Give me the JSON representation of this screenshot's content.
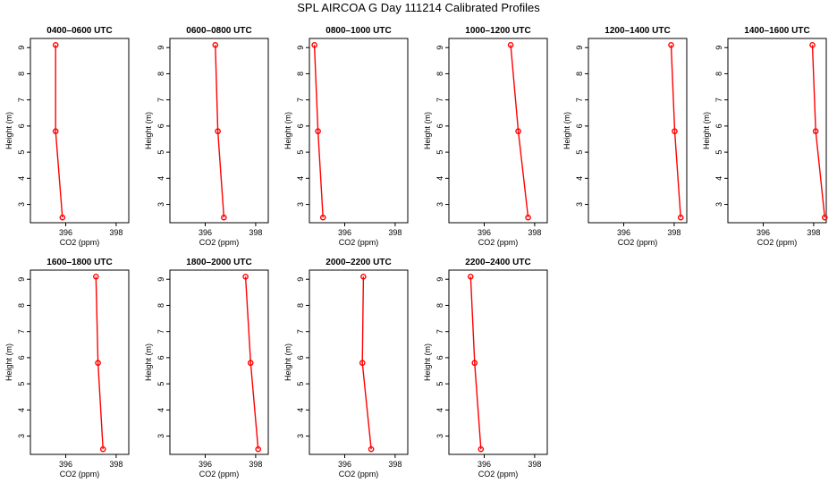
{
  "page": {
    "title": "SPL AIRCOA G  Day 111214  Calibrated Profiles"
  },
  "colors": {
    "profile_line": "#ff0000",
    "frame": "#000000"
  },
  "chart_data": [
    {
      "type": "line",
      "title": "0400–0600 UTC",
      "xlabel": "CO2 (ppm)",
      "ylabel": "Height (m)",
      "x_ticks": [
        "396",
        "398"
      ],
      "y_ticks": [
        "3",
        "4",
        "5",
        "6",
        "7",
        "8",
        "9"
      ],
      "xlim": [
        394.6,
        398.5
      ],
      "ylim": [
        2.3,
        9.35
      ],
      "series": [
        {
          "x": [
            395.6,
            395.6,
            395.87
          ],
          "y": [
            9.1,
            5.8,
            2.5
          ]
        }
      ]
    },
    {
      "type": "line",
      "title": "0600–0800 UTC",
      "xlabel": "CO2 (ppm)",
      "ylabel": "Height (m)",
      "x_ticks": [
        "396",
        "398"
      ],
      "y_ticks": [
        "3",
        "4",
        "5",
        "6",
        "7",
        "8",
        "9"
      ],
      "xlim": [
        394.6,
        398.5
      ],
      "ylim": [
        2.3,
        9.35
      ],
      "series": [
        {
          "x": [
            396.4,
            396.5,
            396.74
          ],
          "y": [
            9.1,
            5.8,
            2.5
          ]
        }
      ]
    },
    {
      "type": "line",
      "title": "0800–1000 UTC",
      "xlabel": "CO2 (ppm)",
      "ylabel": "Height (m)",
      "x_ticks": [
        "396",
        "398"
      ],
      "y_ticks": [
        "3",
        "4",
        "5",
        "6",
        "7",
        "8",
        "9"
      ],
      "xlim": [
        394.6,
        398.5
      ],
      "ylim": [
        2.3,
        9.35
      ],
      "series": [
        {
          "x": [
            394.8,
            394.94,
            395.14
          ],
          "y": [
            9.1,
            5.8,
            2.5
          ]
        }
      ]
    },
    {
      "type": "line",
      "title": "1000–1200 UTC",
      "xlabel": "CO2 (ppm)",
      "ylabel": "Height (m)",
      "x_ticks": [
        "396",
        "398"
      ],
      "y_ticks": [
        "3",
        "4",
        "5",
        "6",
        "7",
        "8",
        "9"
      ],
      "xlim": [
        394.6,
        398.5
      ],
      "ylim": [
        2.3,
        9.35
      ],
      "series": [
        {
          "x": [
            397.05,
            397.35,
            397.74
          ],
          "y": [
            9.1,
            5.8,
            2.5
          ]
        }
      ]
    },
    {
      "type": "line",
      "title": "1200–1400 UTC",
      "xlabel": "CO2 (ppm)",
      "ylabel": "Height (m)",
      "x_ticks": [
        "396",
        "398"
      ],
      "y_ticks": [
        "3",
        "4",
        "5",
        "6",
        "7",
        "8",
        "9"
      ],
      "xlim": [
        394.6,
        398.5
      ],
      "ylim": [
        2.3,
        9.35
      ],
      "series": [
        {
          "x": [
            397.88,
            398.02,
            398.26
          ],
          "y": [
            9.1,
            5.8,
            2.5
          ]
        }
      ]
    },
    {
      "type": "line",
      "title": "1400–1600 UTC",
      "xlabel": "CO2 (ppm)",
      "ylabel": "Height (m)",
      "x_ticks": [
        "396",
        "398"
      ],
      "y_ticks": [
        "3",
        "4",
        "5",
        "6",
        "7",
        "8",
        "9"
      ],
      "xlim": [
        394.6,
        398.5
      ],
      "ylim": [
        2.3,
        9.35
      ],
      "series": [
        {
          "x": [
            397.95,
            398.08,
            398.44
          ],
          "y": [
            9.1,
            5.8,
            2.5
          ]
        }
      ]
    },
    {
      "type": "line",
      "title": "1600–1800 UTC",
      "xlabel": "CO2 (ppm)",
      "ylabel": "Height (m)",
      "x_ticks": [
        "396",
        "398"
      ],
      "y_ticks": [
        "3",
        "4",
        "5",
        "6",
        "7",
        "8",
        "9"
      ],
      "xlim": [
        394.6,
        398.5
      ],
      "ylim": [
        2.3,
        9.35
      ],
      "series": [
        {
          "x": [
            397.2,
            397.28,
            397.48
          ],
          "y": [
            9.1,
            5.8,
            2.5
          ]
        }
      ]
    },
    {
      "type": "line",
      "title": "1800–2000 UTC",
      "xlabel": "CO2 (ppm)",
      "ylabel": "Height (m)",
      "x_ticks": [
        "396",
        "398"
      ],
      "y_ticks": [
        "3",
        "4",
        "5",
        "6",
        "7",
        "8",
        "9"
      ],
      "xlim": [
        394.6,
        398.5
      ],
      "ylim": [
        2.3,
        9.35
      ],
      "series": [
        {
          "x": [
            397.6,
            397.8,
            398.1
          ],
          "y": [
            9.1,
            5.8,
            2.5
          ]
        }
      ]
    },
    {
      "type": "line",
      "title": "2000–2200 UTC",
      "xlabel": "CO2 (ppm)",
      "ylabel": "Height (m)",
      "x_ticks": [
        "396",
        "398"
      ],
      "y_ticks": [
        "3",
        "4",
        "5",
        "6",
        "7",
        "8",
        "9"
      ],
      "xlim": [
        394.6,
        398.5
      ],
      "ylim": [
        2.3,
        9.35
      ],
      "series": [
        {
          "x": [
            396.74,
            396.7,
            397.05
          ],
          "y": [
            9.1,
            5.8,
            2.5
          ]
        }
      ]
    },
    {
      "type": "line",
      "title": "2200–2400 UTC",
      "xlabel": "CO2 (ppm)",
      "ylabel": "Height (m)",
      "x_ticks": [
        "396",
        "398"
      ],
      "y_ticks": [
        "3",
        "4",
        "5",
        "6",
        "7",
        "8",
        "9"
      ],
      "xlim": [
        394.6,
        398.5
      ],
      "ylim": [
        2.3,
        9.35
      ],
      "series": [
        {
          "x": [
            395.46,
            395.62,
            395.87
          ],
          "y": [
            9.1,
            5.8,
            2.5
          ]
        }
      ]
    }
  ]
}
